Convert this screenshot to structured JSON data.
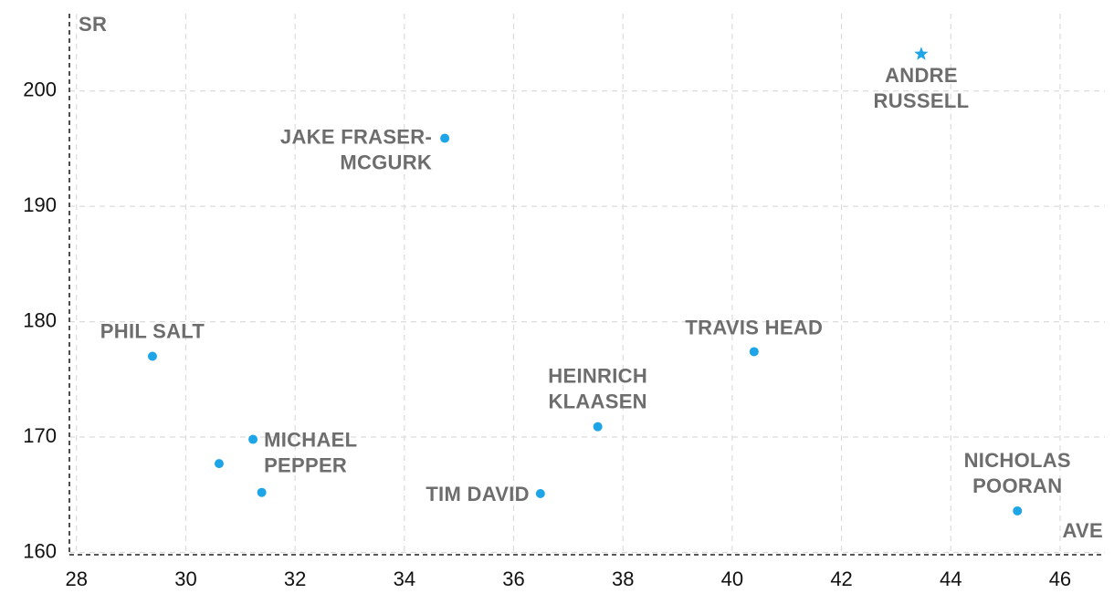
{
  "chart_data": {
    "type": "scatter",
    "x_label": "AVE",
    "y_label": "SR",
    "xlim": [
      27.87,
      46.82
    ],
    "ylim": [
      159.8,
      206.7
    ],
    "xticks": [
      28,
      30,
      32,
      34,
      36,
      38,
      40,
      42,
      44,
      46
    ],
    "yticks": [
      160,
      170,
      180,
      190,
      200
    ],
    "grid": true,
    "series": [
      {
        "color": "#1ea5e8",
        "labels": [
          [
            "ANDRE",
            "RUSSELL"
          ],
          [
            "JAKE FRASER-",
            "MCGURK"
          ],
          [
            "PHIL SALT"
          ],
          [
            "TRAVIS HEAD"
          ],
          [
            "HEINRICH",
            "KLAASEN"
          ],
          [
            "MICHAEL",
            "PEPPER"
          ],
          null,
          null,
          [
            "TIM DAVID"
          ],
          [
            "NICHOLAS",
            "POORAN"
          ]
        ],
        "markers": [
          "star",
          "circle",
          "circle",
          "circle",
          "circle",
          "circle",
          "circle",
          "circle",
          "circle",
          "circle"
        ],
        "x": [
          43.46,
          34.74,
          29.39,
          40.4,
          37.54,
          31.23,
          30.61,
          31.39,
          36.49,
          45.22
        ],
        "values": [
          203.2,
          195.9,
          177.0,
          177.4,
          170.9,
          169.8,
          167.7,
          165.2,
          165.1,
          163.6
        ]
      }
    ]
  }
}
